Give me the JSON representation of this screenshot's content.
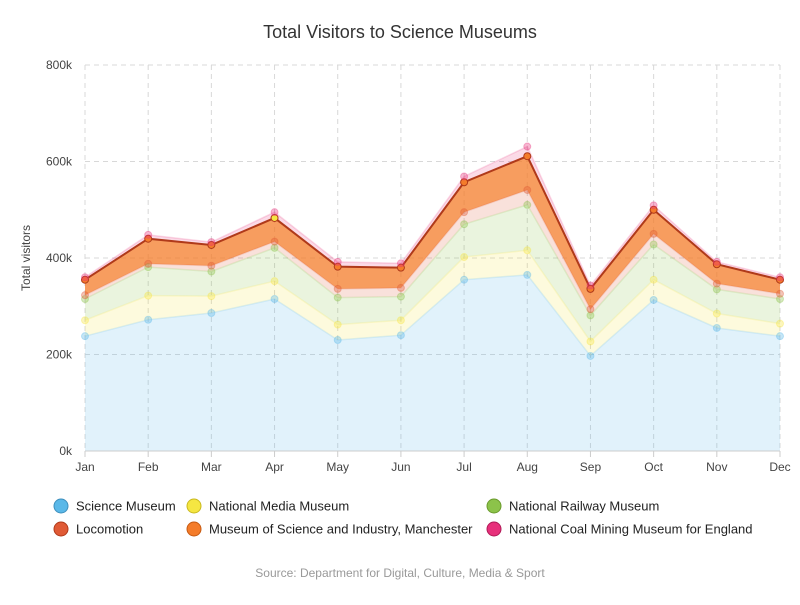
{
  "chart_data": {
    "type": "area",
    "stacking": "normal",
    "title": "Total Visitors to Science Museums",
    "ylabel": "Total visitors",
    "xlabel": "",
    "categories": [
      "Jan",
      "Feb",
      "Mar",
      "Apr",
      "May",
      "Jun",
      "Jul",
      "Aug",
      "Sep",
      "Oct",
      "Nov",
      "Dec"
    ],
    "ylim": [
      0,
      800000
    ],
    "yticks": [
      0,
      200000,
      400000,
      600000,
      800000
    ],
    "ytick_labels": [
      "0k",
      "200k",
      "400k",
      "600k",
      "800k"
    ],
    "grid": true,
    "legend_position": "bottom",
    "series": [
      {
        "name": "Science Museum",
        "color": "#5ab8e8",
        "values": [
          238000,
          272000,
          286000,
          315000,
          230000,
          240000,
          355000,
          365000,
          197000,
          313000,
          255000,
          238000
        ]
      },
      {
        "name": "National Media Museum",
        "color": "#f5e642",
        "values": [
          33000,
          50000,
          35000,
          37000,
          32000,
          31000,
          47000,
          51000,
          30000,
          42000,
          30000,
          26000
        ]
      },
      {
        "name": "National Railway Museum",
        "color": "#8cc34a",
        "values": [
          44000,
          59000,
          51000,
          69000,
          56000,
          49000,
          68000,
          94000,
          54000,
          73000,
          50000,
          51000
        ]
      },
      {
        "name": "Locomotion",
        "color": "#e05a35",
        "values": [
          8000,
          7000,
          12000,
          13000,
          18000,
          18000,
          25000,
          31000,
          13000,
          22000,
          12000,
          11000
        ]
      },
      {
        "name": "Museum of Science and Industry, Manchester",
        "color": "#f47c2a",
        "values": [
          32000,
          52000,
          43000,
          49000,
          46000,
          42000,
          62000,
          70000,
          42000,
          50000,
          40000,
          29000
        ]
      },
      {
        "name": "National Coal Mining Museum for England",
        "color": "#e7307b",
        "values": [
          5000,
          8000,
          6000,
          12000,
          10000,
          9000,
          12000,
          20000,
          7000,
          9000,
          5000,
          5000
        ]
      }
    ],
    "highlight_point": {
      "series": "Museum of Science and Industry, Manchester",
      "category": "Apr",
      "marker_color": "#f5e642"
    }
  },
  "credits": "Source: Department for Digital, Culture, Media & Sport"
}
